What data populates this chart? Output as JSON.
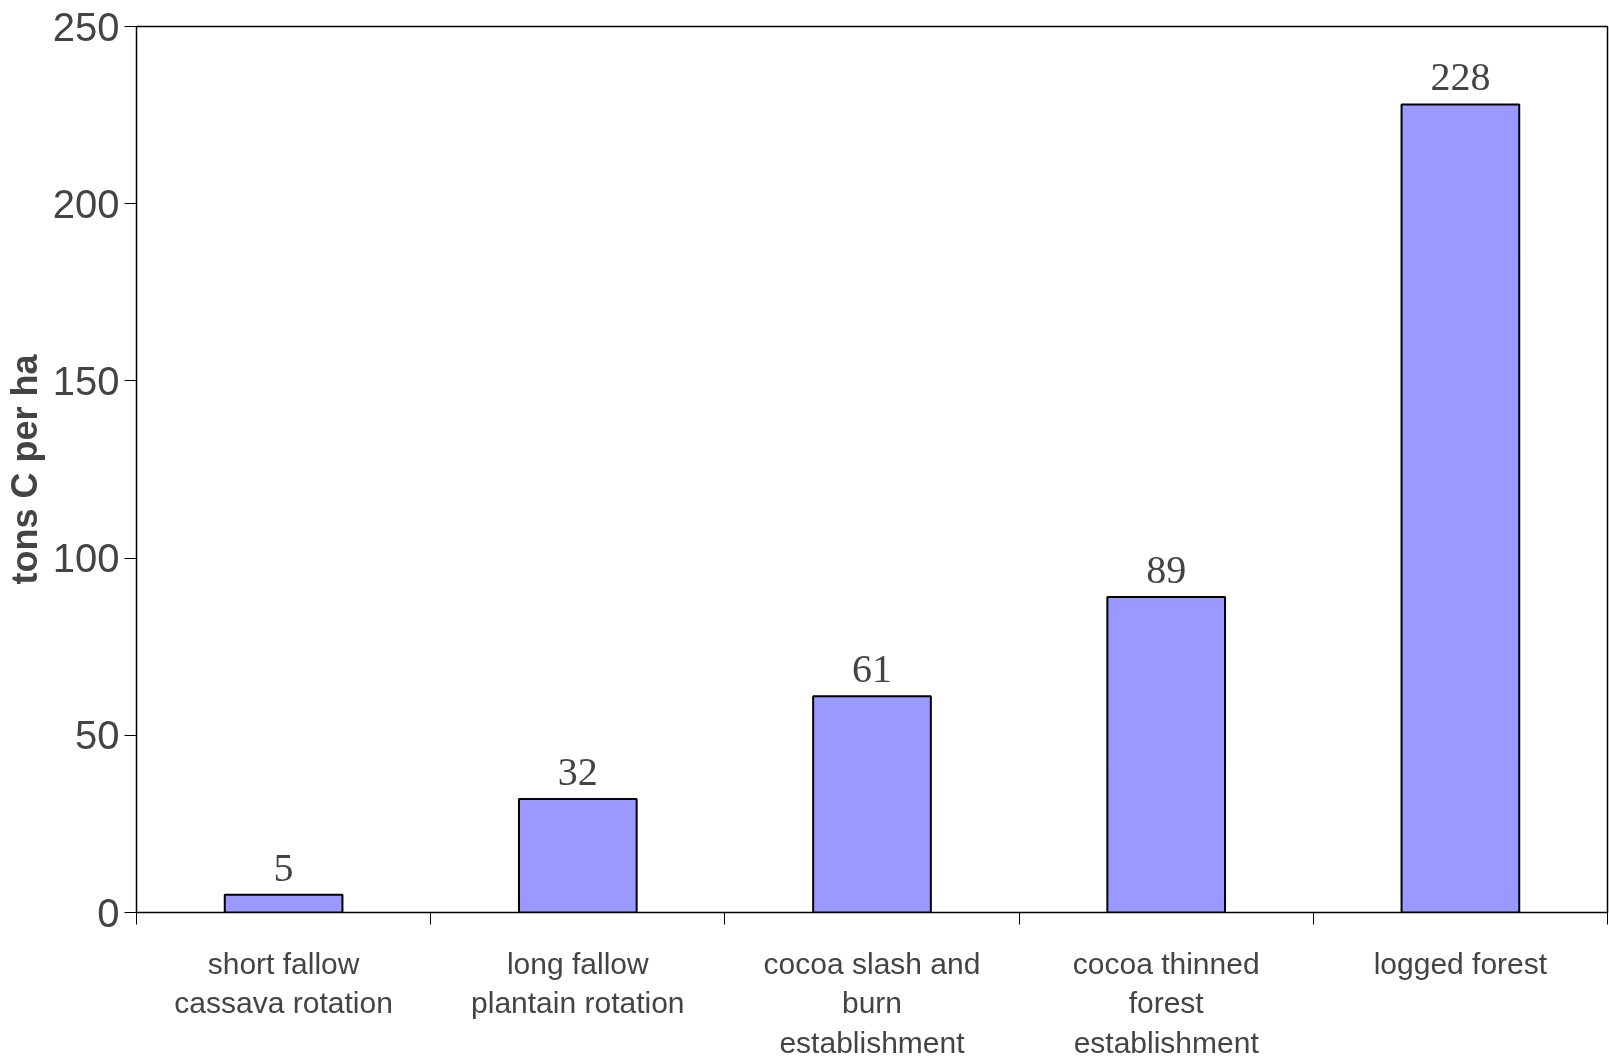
{
  "chart_data": {
    "type": "bar",
    "ylabel": "tons C per ha",
    "categories": [
      "short fallow\ncassava rotation",
      "long fallow\nplantain rotation",
      "cocoa slash and\nburn\nestablishment",
      "cocoa thinned\nforest\nestablishment",
      "logged forest"
    ],
    "values": [
      5,
      32,
      61,
      89,
      228
    ],
    "color": "#9999ff",
    "ylim": [
      0,
      250
    ],
    "yticks": [
      0,
      50,
      100,
      150,
      200,
      250
    ],
    "data_labels": true,
    "grid": false
  }
}
